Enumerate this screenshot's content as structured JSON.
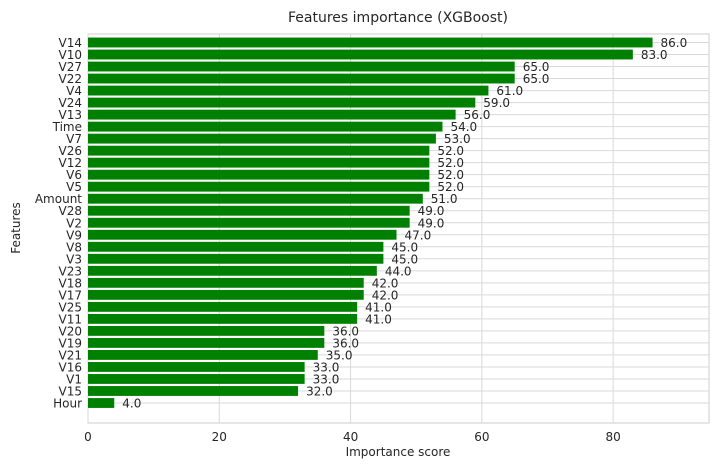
{
  "chart_data": {
    "type": "bar",
    "orientation": "horizontal",
    "title": "Features importance (XGBoost)",
    "xlabel": "Importance score",
    "ylabel": "Features",
    "xlim": [
      0,
      94.6
    ],
    "xticks": [
      0,
      20,
      40,
      60,
      80
    ],
    "grid": true,
    "bar_color": "#008000",
    "categories": [
      "V14",
      "V10",
      "V27",
      "V22",
      "V4",
      "V24",
      "V13",
      "Time",
      "V7",
      "V26",
      "V12",
      "V6",
      "V5",
      "Amount",
      "V28",
      "V2",
      "V9",
      "V8",
      "V3",
      "V23",
      "V18",
      "V17",
      "V25",
      "V11",
      "V20",
      "V19",
      "V21",
      "V16",
      "V1",
      "V15",
      "Hour"
    ],
    "values": [
      86,
      83,
      65,
      65,
      61,
      59,
      56,
      54,
      53,
      52,
      52,
      52,
      52,
      51,
      49,
      49,
      47,
      45,
      45,
      44,
      42,
      42,
      41,
      41,
      36,
      36,
      35,
      33,
      33,
      32,
      4
    ],
    "value_labels": [
      "86.0",
      "83.0",
      "65.0",
      "65.0",
      "61.0",
      "59.0",
      "56.0",
      "54.0",
      "53.0",
      "52.0",
      "52.0",
      "52.0",
      "52.0",
      "51.0",
      "49.0",
      "49.0",
      "47.0",
      "45.0",
      "45.0",
      "44.0",
      "42.0",
      "42.0",
      "41.0",
      "41.0",
      "36.0",
      "36.0",
      "35.0",
      "33.0",
      "33.0",
      "32.0",
      "4.0"
    ]
  }
}
